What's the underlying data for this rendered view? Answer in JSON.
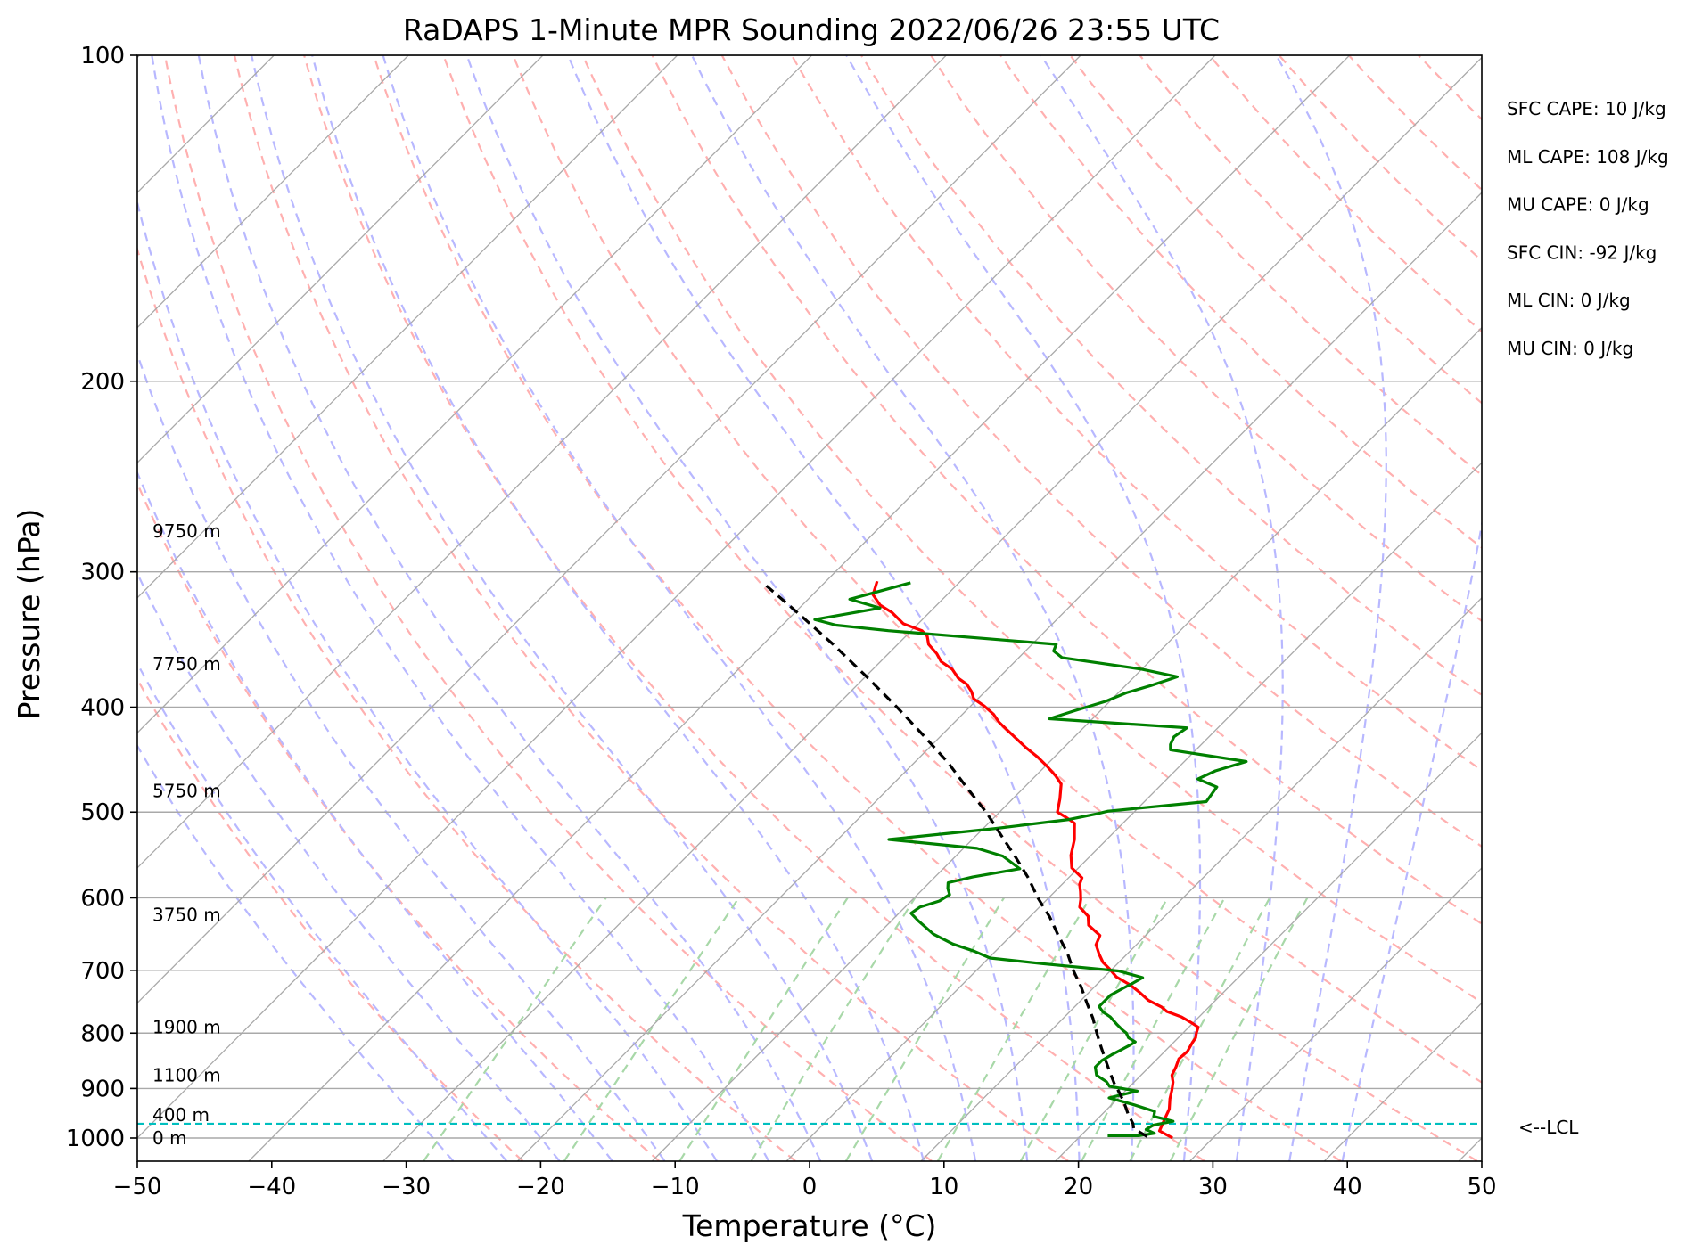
{
  "chart_data": {
    "type": "line",
    "subtype": "skew-t log-p sounding",
    "title": "RaDAPS 1-Minute MPR Sounding 2022/06/26 23:55 UTC",
    "xlabel": "Temperature (°C)",
    "ylabel": "Pressure (hPa)",
    "xlim": [
      -50,
      50
    ],
    "ylim": [
      1050,
      100
    ],
    "y_scale": "log",
    "grid": true,
    "x_ticks": [
      -50,
      -40,
      -30,
      -20,
      -10,
      0,
      10,
      20,
      30,
      40,
      50
    ],
    "x_tick_labels": [
      "−50",
      "−40",
      "−30",
      "−20",
      "−10",
      "0",
      "10",
      "20",
      "30",
      "40",
      "50"
    ],
    "y_ticks": [
      100,
      200,
      300,
      400,
      500,
      600,
      700,
      800,
      900,
      1000
    ],
    "y_tick_labels": [
      "100",
      "200",
      "300",
      "400",
      "500",
      "600",
      "700",
      "800",
      "900",
      "1000"
    ],
    "height_labels": [
      {
        "p": 275,
        "label": "9750 m"
      },
      {
        "p": 365,
        "label": "7750 m"
      },
      {
        "p": 478,
        "label": "5750 m"
      },
      {
        "p": 622,
        "label": "3750 m"
      },
      {
        "p": 790,
        "label": "1900 m"
      },
      {
        "p": 875,
        "label": "1100 m"
      },
      {
        "p": 952,
        "label": "400 m"
      },
      {
        "p": 1000,
        "label": "0 m"
      }
    ],
    "series": [
      {
        "kind": "temperature",
        "color": "#ff0000",
        "points": [
          [
            27.0,
            1000
          ],
          [
            25.5,
            985
          ],
          [
            25.2,
            970
          ],
          [
            24.9,
            955
          ],
          [
            24.6,
            940
          ],
          [
            23.9,
            920
          ],
          [
            23.4,
            903
          ],
          [
            22.9,
            888
          ],
          [
            22.3,
            875
          ],
          [
            22.0,
            860
          ],
          [
            21.6,
            845
          ],
          [
            21.7,
            832
          ],
          [
            21.4,
            816
          ],
          [
            21.3,
            808
          ],
          [
            21.0,
            800
          ],
          [
            20.7,
            790
          ],
          [
            19.8,
            782
          ],
          [
            18.7,
            773
          ],
          [
            17.2,
            764
          ],
          [
            16.5,
            757
          ],
          [
            15.0,
            746
          ],
          [
            13.8,
            734
          ],
          [
            12.5,
            722
          ],
          [
            10.9,
            710
          ],
          [
            9.8,
            698
          ],
          [
            8.8,
            688
          ],
          [
            7.9,
            676
          ],
          [
            7.0,
            663
          ],
          [
            6.6,
            650
          ],
          [
            5.0,
            636
          ],
          [
            4.3,
            624
          ],
          [
            3.0,
            612
          ],
          [
            2.5,
            602
          ],
          [
            1.9,
            592
          ],
          [
            1.3,
            583
          ],
          [
            1.0,
            575
          ],
          [
            -0.5,
            563
          ],
          [
            -1.5,
            548
          ],
          [
            -2.4,
            530
          ],
          [
            -3.0,
            521
          ],
          [
            -3.6,
            512
          ],
          [
            -4.6,
            506
          ],
          [
            -5.7,
            500
          ],
          [
            -6.5,
            486
          ],
          [
            -7.5,
            471
          ],
          [
            -8.5,
            463
          ],
          [
            -9.8,
            454
          ],
          [
            -11.2,
            445
          ],
          [
            -12.8,
            436
          ],
          [
            -14.3,
            427
          ],
          [
            -15.5,
            420
          ],
          [
            -16.7,
            413
          ],
          [
            -17.7,
            406
          ],
          [
            -19.0,
            399
          ],
          [
            -20.3,
            393
          ],
          [
            -21.0,
            387
          ],
          [
            -21.9,
            381
          ],
          [
            -23.0,
            376
          ],
          [
            -24.1,
            369
          ],
          [
            -25.5,
            363
          ],
          [
            -26.4,
            357
          ],
          [
            -27.7,
            350
          ],
          [
            -28.4,
            344
          ],
          [
            -29.2,
            340
          ],
          [
            -31.1,
            335
          ],
          [
            -32.8,
            327
          ],
          [
            -34.2,
            322
          ],
          [
            -35.5,
            315
          ],
          [
            -36.2,
            306
          ]
        ]
      },
      {
        "kind": "dewpoint",
        "color": "#008000",
        "points": [
          [
            22.0,
            995
          ],
          [
            24.3,
            995
          ],
          [
            25.3,
            990
          ],
          [
            24.4,
            982
          ],
          [
            24.6,
            973
          ],
          [
            25.8,
            965
          ],
          [
            24.0,
            955
          ],
          [
            23.7,
            945
          ],
          [
            21.7,
            932
          ],
          [
            19.3,
            918
          ],
          [
            20.9,
            905
          ],
          [
            18.5,
            896
          ],
          [
            17.9,
            887
          ],
          [
            16.7,
            875
          ],
          [
            16.0,
            860
          ],
          [
            16.0,
            848
          ],
          [
            16.3,
            838
          ],
          [
            16.6,
            830
          ],
          [
            16.9,
            822
          ],
          [
            17.1,
            815
          ],
          [
            16.3,
            808
          ],
          [
            15.8,
            800
          ],
          [
            15.3,
            795
          ],
          [
            14.5,
            786
          ],
          [
            13.4,
            773
          ],
          [
            12.5,
            765
          ],
          [
            11.8,
            756
          ],
          [
            11.8,
            746
          ],
          [
            11.8,
            738
          ],
          [
            12.2,
            728
          ],
          [
            12.6,
            719
          ],
          [
            12.9,
            711
          ],
          [
            10.6,
            701
          ],
          [
            4.3,
            690
          ],
          [
            0.1,
            682
          ],
          [
            -1.6,
            672
          ],
          [
            -3.7,
            662
          ],
          [
            -5.9,
            648
          ],
          [
            -8.0,
            630
          ],
          [
            -9.1,
            620
          ],
          [
            -8.9,
            612
          ],
          [
            -7.9,
            604
          ],
          [
            -7.6,
            596
          ],
          [
            -8.2,
            588
          ],
          [
            -8.6,
            581
          ],
          [
            -7.2,
            574
          ],
          [
            -4.3,
            564
          ],
          [
            -6.5,
            549
          ],
          [
            -9.0,
            540
          ],
          [
            -16.2,
            530
          ],
          [
            -9.2,
            518
          ],
          [
            -4.3,
            508
          ],
          [
            -2.7,
            502
          ],
          [
            -2.0,
            499
          ],
          [
            4.6,
            489
          ],
          [
            4.3,
            474
          ],
          [
            2.3,
            466
          ],
          [
            3.0,
            458
          ],
          [
            4.6,
            449
          ],
          [
            -1.9,
            438
          ],
          [
            -2.3,
            433
          ],
          [
            -2.6,
            426
          ],
          [
            -2.3,
            418
          ],
          [
            -13.2,
            410
          ],
          [
            -11.9,
            403
          ],
          [
            -10.3,
            395
          ],
          [
            -9.4,
            388
          ],
          [
            -8.1,
            382
          ],
          [
            -6.8,
            375
          ],
          [
            -10.0,
            369
          ],
          [
            -16.8,
            360
          ],
          [
            -17.9,
            355
          ],
          [
            -18.2,
            350
          ],
          [
            -31.7,
            340
          ],
          [
            -36.0,
            336
          ],
          [
            -38.0,
            332
          ],
          [
            -34.0,
            324
          ],
          [
            -36.9,
            318
          ],
          [
            -33.6,
            307
          ]
        ]
      },
      {
        "kind": "parcel profile",
        "color": "#000000",
        "style": "dashed",
        "points": [
          [
            25.0,
            997
          ],
          [
            23.4,
            980
          ],
          [
            23.0,
            970
          ],
          [
            21.9,
            950
          ],
          [
            20.9,
            930
          ],
          [
            19.8,
            910
          ],
          [
            18.6,
            890
          ],
          [
            17.5,
            870
          ],
          [
            16.4,
            850
          ],
          [
            15.0,
            825
          ],
          [
            13.6,
            800
          ],
          [
            12.2,
            775
          ],
          [
            10.6,
            750
          ],
          [
            9.0,
            725
          ],
          [
            7.2,
            700
          ],
          [
            5.5,
            675
          ],
          [
            3.5,
            650
          ],
          [
            1.5,
            625
          ],
          [
            -0.8,
            600
          ],
          [
            -3.0,
            575
          ],
          [
            -5.5,
            550
          ],
          [
            -8.2,
            525
          ],
          [
            -11.0,
            500
          ],
          [
            -14.2,
            475
          ],
          [
            -17.5,
            450
          ],
          [
            -21.3,
            425
          ],
          [
            -25.4,
            400
          ],
          [
            -29.9,
            375
          ],
          [
            -34.8,
            350
          ],
          [
            -40.3,
            325
          ],
          [
            -44.1,
            309
          ]
        ]
      }
    ],
    "lcl": {
      "p": 970,
      "label": "<--LCL",
      "color": "#00bfbf"
    },
    "stats": [
      "SFC CAPE: 10 J/kg",
      "ML CAPE: 108 J/kg",
      "MU CAPE: 0 J/kg",
      "SFC CIN: -92 J/kg",
      "ML CIN: 0 J/kg",
      "MU CIN: 0 J/kg"
    ],
    "background_lines": {
      "isotherms_color": "#a9a9a9",
      "dry_adiabats_color": "#ffb0b0",
      "moist_adiabats_color": "#b8b8ff",
      "mixing_ratio_color": "#a8d8a8"
    }
  }
}
